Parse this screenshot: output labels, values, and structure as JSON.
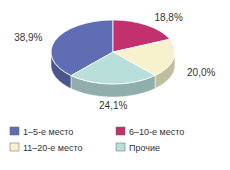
{
  "chart_data": {
    "type": "pie",
    "categories": [
      "1–5-е место",
      "6–10-е место",
      "11–20-е место",
      "Прочие"
    ],
    "values": [
      38.9,
      18.8,
      20.0,
      24.1
    ],
    "value_labels": [
      "38,9%",
      "18,8%",
      "20,0%",
      "24,1%"
    ],
    "colors": [
      "#5f6db3",
      "#c2306e",
      "#f7f2cc",
      "#b9dfdb"
    ],
    "data_labels": true,
    "legend": "bottom"
  }
}
